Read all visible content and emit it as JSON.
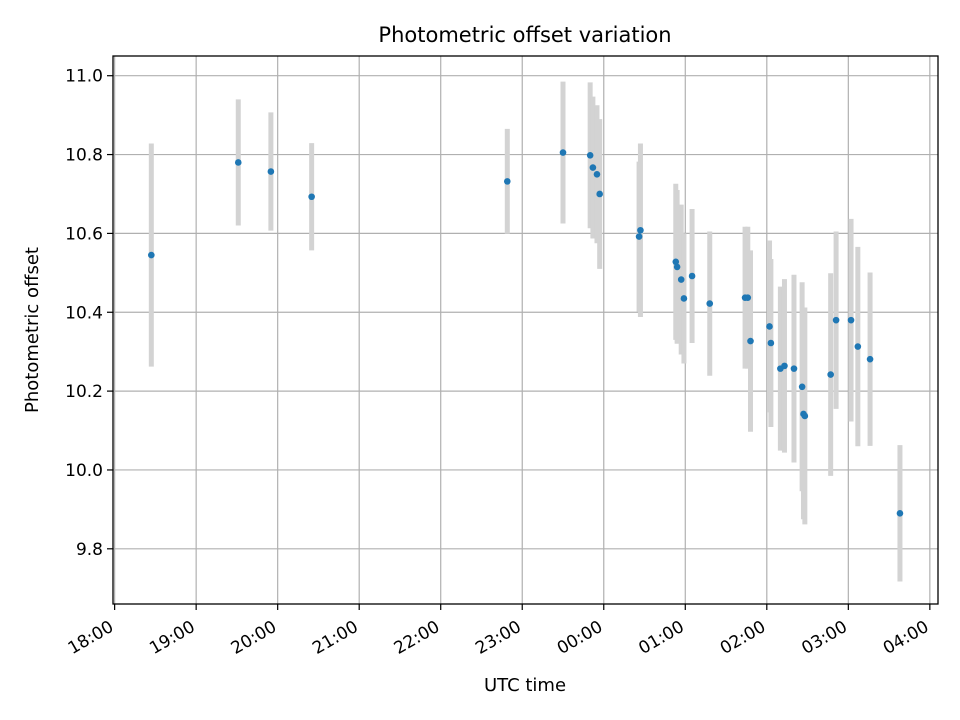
{
  "chart_data": {
    "type": "scatter",
    "title": "Photometric offset variation",
    "xlabel": "UTC time",
    "ylabel": "Photometric offset",
    "x_tick_labels": [
      "18:00",
      "19:00",
      "20:00",
      "21:00",
      "22:00",
      "23:00",
      "00:00",
      "01:00",
      "02:00",
      "03:00",
      "04:00"
    ],
    "x_tick_hours": [
      18,
      19,
      20,
      21,
      22,
      23,
      24,
      25,
      26,
      27,
      28
    ],
    "y_ticks": [
      9.8,
      10.0,
      10.2,
      10.4,
      10.6,
      10.8,
      11.0
    ],
    "y_tick_labels": [
      "9.8",
      "10.0",
      "10.2",
      "10.4",
      "10.6",
      "10.8",
      "11.0"
    ],
    "xlim_hours": [
      17.98,
      28.1
    ],
    "ylim": [
      9.66,
      11.05
    ],
    "grid": true,
    "colors": {
      "point": "#1f77b4",
      "errorbar": "#d3d3d3",
      "grid": "#b0b0b0"
    },
    "series": [
      {
        "points": [
          {
            "x": "18:27",
            "y": 10.545,
            "yerr": 0.283
          },
          {
            "x": "19:31",
            "y": 10.78,
            "yerr": 0.16
          },
          {
            "x": "19:55",
            "y": 10.757,
            "yerr": 0.15
          },
          {
            "x": "20:25",
            "y": 10.693,
            "yerr": 0.136
          },
          {
            "x": "22:49",
            "y": 10.732,
            "yerr": 0.133
          },
          {
            "x": "23:30",
            "y": 10.805,
            "yerr": 0.18
          },
          {
            "x": "23:50",
            "y": 10.798,
            "yerr": 0.185
          },
          {
            "x": "23:52",
            "y": 10.767,
            "yerr": 0.18
          },
          {
            "x": "23:55",
            "y": 10.75,
            "yerr": 0.175
          },
          {
            "x": "23:57",
            "y": 10.7,
            "yerr": 0.19
          },
          {
            "x": "00:26",
            "y": 10.592,
            "yerr": 0.19
          },
          {
            "x": "00:27",
            "y": 10.608,
            "yerr": 0.22
          },
          {
            "x": "00:53",
            "y": 10.528,
            "yerr": 0.198
          },
          {
            "x": "00:54",
            "y": 10.515,
            "yerr": 0.195
          },
          {
            "x": "00:57",
            "y": 10.483,
            "yerr": 0.19
          },
          {
            "x": "00:59",
            "y": 10.435,
            "yerr": 0.165
          },
          {
            "x": "01:05",
            "y": 10.492,
            "yerr": 0.17
          },
          {
            "x": "01:18",
            "y": 10.422,
            "yerr": 0.183
          },
          {
            "x": "01:44",
            "y": 10.437,
            "yerr": 0.18
          },
          {
            "x": "01:46",
            "y": 10.437,
            "yerr": 0.18
          },
          {
            "x": "01:48",
            "y": 10.327,
            "yerr": 0.23
          },
          {
            "x": "02:02",
            "y": 10.364,
            "yerr": 0.218
          },
          {
            "x": "02:03",
            "y": 10.322,
            "yerr": 0.213
          },
          {
            "x": "02:10",
            "y": 10.257,
            "yerr": 0.208
          },
          {
            "x": "02:13",
            "y": 10.264,
            "yerr": 0.22
          },
          {
            "x": "02:20",
            "y": 10.257,
            "yerr": 0.238
          },
          {
            "x": "02:26",
            "y": 10.211,
            "yerr": 0.265
          },
          {
            "x": "02:27",
            "y": 10.142,
            "yerr": 0.267
          },
          {
            "x": "02:28",
            "y": 10.137,
            "yerr": 0.275
          },
          {
            "x": "02:47",
            "y": 10.242,
            "yerr": 0.257
          },
          {
            "x": "02:51",
            "y": 10.38,
            "yerr": 0.225
          },
          {
            "x": "03:02",
            "y": 10.38,
            "yerr": 0.257
          },
          {
            "x": "03:07",
            "y": 10.313,
            "yerr": 0.253
          },
          {
            "x": "03:16",
            "y": 10.281,
            "yerr": 0.22
          },
          {
            "x": "03:38",
            "y": 9.89,
            "yerr": 0.173
          }
        ]
      }
    ]
  }
}
